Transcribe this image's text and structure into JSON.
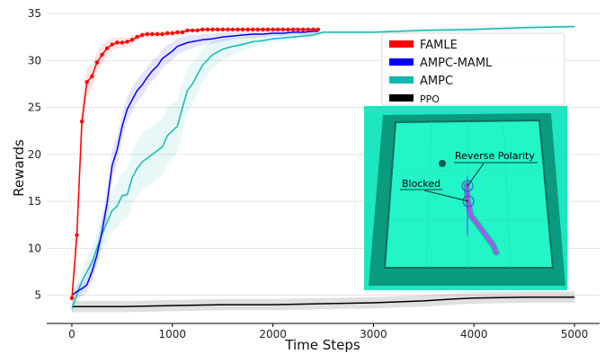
{
  "chart_data": {
    "type": "line",
    "xlabel": "Time Steps",
    "ylabel": "Rewards",
    "xlim": [
      -250,
      5250
    ],
    "ylim": [
      2,
      35
    ],
    "x_ticks": [
      0,
      1000,
      2000,
      3000,
      4000,
      5000
    ],
    "y_ticks": [
      5,
      10,
      15,
      20,
      25,
      30,
      35
    ],
    "grid": "horizontal",
    "legend_position": "upper-right",
    "colors": {
      "FAMLE": "#ff0000",
      "AMPC-MAML": "#0000ff",
      "AMPC": "#14b8ae",
      "PPO": "#000000"
    },
    "series": [
      {
        "name": "FAMLE",
        "markers": true,
        "x": [
          0,
          50,
          100,
          150,
          200,
          250,
          300,
          350,
          400,
          450,
          500,
          550,
          600,
          650,
          700,
          750,
          800,
          850,
          900,
          950,
          1000,
          1050,
          1100,
          1150,
          1200,
          1250,
          1300,
          1350,
          1400,
          1450,
          1500,
          1550,
          1600,
          1650,
          1700,
          1750,
          1800,
          1850,
          1900,
          1950,
          2000,
          2050,
          2100,
          2150,
          2200,
          2250,
          2300,
          2350,
          2400,
          2450
        ],
        "y": [
          4.7,
          11.4,
          23.5,
          27.7,
          28.3,
          29.8,
          30.6,
          31.3,
          31.7,
          31.9,
          31.9,
          32.0,
          32.2,
          32.5,
          32.7,
          32.8,
          32.8,
          32.8,
          32.8,
          32.9,
          32.9,
          33.0,
          33.0,
          33.2,
          33.2,
          33.2,
          33.3,
          33.3,
          33.3,
          33.3,
          33.3,
          33.3,
          33.3,
          33.3,
          33.3,
          33.3,
          33.3,
          33.3,
          33.3,
          33.3,
          33.3,
          33.3,
          33.3,
          33.3,
          33.3,
          33.3,
          33.3,
          33.3,
          33.3,
          33.3
        ],
        "band": [
          1.0,
          2.0,
          2.0,
          1.5,
          1.3,
          1.1,
          1.0,
          0.8,
          0.7,
          0.6,
          0.6,
          0.5,
          0.5,
          0.4,
          0.4,
          0.4,
          0.3,
          0.3,
          0.3,
          0.3,
          0.3,
          0.3,
          0.3,
          0.2,
          0.2,
          0.2,
          0.2,
          0.2,
          0.2,
          0.2,
          0.2,
          0.2,
          0.2,
          0.2,
          0.2,
          0.2,
          0.2,
          0.2,
          0.2,
          0.2,
          0.2,
          0.2,
          0.2,
          0.2,
          0.2,
          0.2,
          0.2,
          0.2,
          0.2,
          0.2
        ]
      },
      {
        "name": "AMPC-MAML",
        "markers": false,
        "x": [
          0,
          50,
          100,
          150,
          200,
          250,
          300,
          350,
          400,
          450,
          500,
          550,
          600,
          650,
          700,
          750,
          800,
          850,
          900,
          950,
          1000,
          1050,
          1100,
          1150,
          1200,
          1300,
          1400,
          1500,
          1600,
          1700,
          1800,
          1900,
          2000,
          2100,
          2200,
          2300,
          2400,
          2450
        ],
        "y": [
          5.0,
          5.4,
          5.7,
          6.1,
          7.5,
          9.3,
          11.8,
          14.8,
          18.8,
          20.5,
          23.0,
          24.8,
          25.8,
          26.8,
          27.4,
          28.2,
          28.9,
          29.4,
          30.2,
          30.6,
          31.0,
          31.5,
          31.7,
          31.9,
          32.0,
          32.2,
          32.3,
          32.5,
          32.6,
          32.7,
          32.8,
          32.8,
          32.9,
          32.9,
          33.0,
          33.0,
          33.1,
          33.1
        ],
        "band": [
          0.6,
          0.7,
          0.8,
          0.9,
          1.0,
          1.2,
          1.4,
          1.6,
          1.6,
          1.5,
          1.4,
          1.3,
          1.3,
          1.2,
          1.2,
          1.1,
          1.1,
          1.0,
          1.0,
          1.0,
          0.9,
          0.9,
          0.8,
          0.8,
          0.7,
          0.6,
          0.5,
          0.5,
          0.4,
          0.4,
          0.4,
          0.3,
          0.3,
          0.3,
          0.3,
          0.3,
          0.3,
          0.3
        ]
      },
      {
        "name": "AMPC",
        "markers": false,
        "x": [
          0,
          100,
          200,
          300,
          400,
          450,
          500,
          550,
          600,
          650,
          700,
          800,
          900,
          950,
          1000,
          1050,
          1100,
          1150,
          1200,
          1300,
          1400,
          1500,
          1600,
          1700,
          1800,
          1900,
          2000,
          2100,
          2200,
          2300,
          2400,
          2500,
          2600,
          3000,
          3500,
          4000,
          4500,
          5000
        ],
        "y": [
          3.6,
          6.5,
          8.5,
          11.5,
          14.0,
          14.5,
          15.6,
          15.7,
          17.5,
          18.5,
          19.2,
          20.0,
          20.8,
          22.0,
          22.5,
          23.0,
          25.0,
          26.8,
          27.5,
          29.5,
          30.6,
          31.2,
          31.5,
          31.7,
          32.0,
          32.1,
          32.3,
          32.4,
          32.5,
          32.6,
          32.7,
          33.0,
          33.0,
          33.0,
          33.2,
          33.3,
          33.5,
          33.6
        ],
        "band": [
          0.8,
          1.2,
          1.5,
          1.8,
          2.2,
          2.4,
          2.5,
          2.6,
          2.8,
          2.9,
          3.0,
          3.0,
          3.0,
          3.0,
          2.9,
          2.8,
          2.6,
          2.4,
          2.2,
          1.8,
          1.4,
          1.1,
          0.9,
          0.7,
          0.6,
          0.5,
          0.4,
          0.4,
          0.3,
          0.3,
          0.3,
          0.2,
          0.2,
          0.2,
          0.2,
          0.2,
          0.2,
          0.2
        ]
      },
      {
        "name": "PPO",
        "markers": false,
        "x": [
          0,
          500,
          1000,
          1500,
          2000,
          2500,
          3000,
          3500,
          3800,
          4000,
          4500,
          5000
        ],
        "y": [
          3.8,
          3.8,
          3.9,
          4.0,
          4.0,
          4.1,
          4.2,
          4.4,
          4.6,
          4.7,
          4.8,
          4.8
        ],
        "band": [
          0.6,
          0.6,
          0.6,
          0.6,
          0.6,
          0.6,
          0.6,
          0.6,
          0.6,
          0.6,
          0.6,
          0.6
        ]
      }
    ],
    "inset_annotations": [
      "Reverse Polarity",
      "Blocked"
    ]
  }
}
